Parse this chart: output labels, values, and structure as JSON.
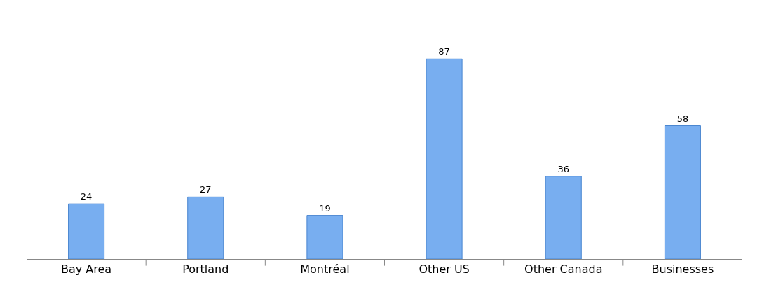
{
  "chart_data": {
    "type": "bar",
    "categories": [
      "Bay Area",
      "Portland",
      "Montréal",
      "Other US",
      "Other Canada",
      "Businesses"
    ],
    "values": [
      24,
      27,
      19,
      87,
      36,
      58
    ],
    "color": "#78aef0",
    "data_labels": true
  }
}
